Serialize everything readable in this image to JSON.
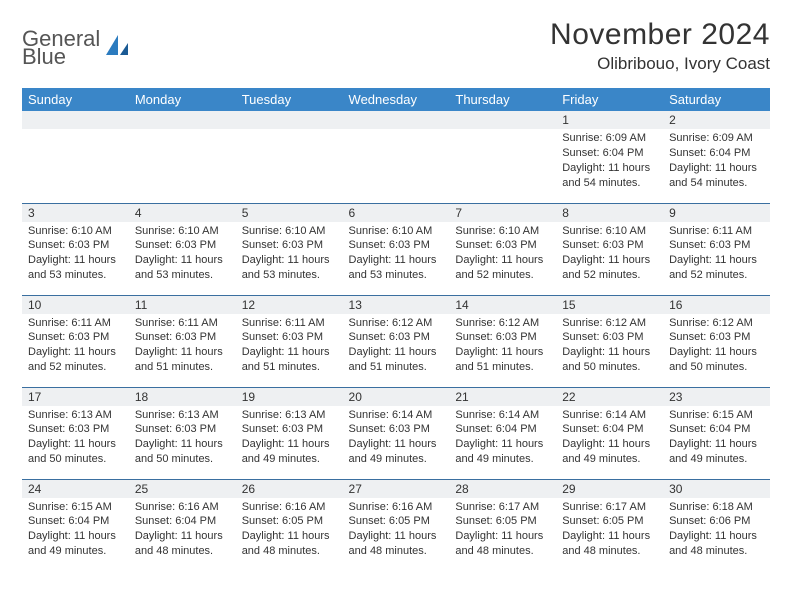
{
  "logo": {
    "line1": "General",
    "line2": "Blue"
  },
  "title": "November 2024",
  "location": "Olibribouo, Ivory Coast",
  "colors": {
    "header_bg": "#3a86c8",
    "header_text": "#ffffff",
    "daynum_bg": "#eef0f2",
    "border": "#3a6fa0",
    "logo_gray": "#555555",
    "logo_blue": "#2b7bbf",
    "text": "#333333"
  },
  "weekdays": [
    "Sunday",
    "Monday",
    "Tuesday",
    "Wednesday",
    "Thursday",
    "Friday",
    "Saturday"
  ],
  "weeks": [
    [
      {
        "num": "",
        "lines": []
      },
      {
        "num": "",
        "lines": []
      },
      {
        "num": "",
        "lines": []
      },
      {
        "num": "",
        "lines": []
      },
      {
        "num": "",
        "lines": []
      },
      {
        "num": "1",
        "lines": [
          "Sunrise: 6:09 AM",
          "Sunset: 6:04 PM",
          "Daylight: 11 hours and 54 minutes."
        ]
      },
      {
        "num": "2",
        "lines": [
          "Sunrise: 6:09 AM",
          "Sunset: 6:04 PM",
          "Daylight: 11 hours and 54 minutes."
        ]
      }
    ],
    [
      {
        "num": "3",
        "lines": [
          "Sunrise: 6:10 AM",
          "Sunset: 6:03 PM",
          "Daylight: 11 hours and 53 minutes."
        ]
      },
      {
        "num": "4",
        "lines": [
          "Sunrise: 6:10 AM",
          "Sunset: 6:03 PM",
          "Daylight: 11 hours and 53 minutes."
        ]
      },
      {
        "num": "5",
        "lines": [
          "Sunrise: 6:10 AM",
          "Sunset: 6:03 PM",
          "Daylight: 11 hours and 53 minutes."
        ]
      },
      {
        "num": "6",
        "lines": [
          "Sunrise: 6:10 AM",
          "Sunset: 6:03 PM",
          "Daylight: 11 hours and 53 minutes."
        ]
      },
      {
        "num": "7",
        "lines": [
          "Sunrise: 6:10 AM",
          "Sunset: 6:03 PM",
          "Daylight: 11 hours and 52 minutes."
        ]
      },
      {
        "num": "8",
        "lines": [
          "Sunrise: 6:10 AM",
          "Sunset: 6:03 PM",
          "Daylight: 11 hours and 52 minutes."
        ]
      },
      {
        "num": "9",
        "lines": [
          "Sunrise: 6:11 AM",
          "Sunset: 6:03 PM",
          "Daylight: 11 hours and 52 minutes."
        ]
      }
    ],
    [
      {
        "num": "10",
        "lines": [
          "Sunrise: 6:11 AM",
          "Sunset: 6:03 PM",
          "Daylight: 11 hours and 52 minutes."
        ]
      },
      {
        "num": "11",
        "lines": [
          "Sunrise: 6:11 AM",
          "Sunset: 6:03 PM",
          "Daylight: 11 hours and 51 minutes."
        ]
      },
      {
        "num": "12",
        "lines": [
          "Sunrise: 6:11 AM",
          "Sunset: 6:03 PM",
          "Daylight: 11 hours and 51 minutes."
        ]
      },
      {
        "num": "13",
        "lines": [
          "Sunrise: 6:12 AM",
          "Sunset: 6:03 PM",
          "Daylight: 11 hours and 51 minutes."
        ]
      },
      {
        "num": "14",
        "lines": [
          "Sunrise: 6:12 AM",
          "Sunset: 6:03 PM",
          "Daylight: 11 hours and 51 minutes."
        ]
      },
      {
        "num": "15",
        "lines": [
          "Sunrise: 6:12 AM",
          "Sunset: 6:03 PM",
          "Daylight: 11 hours and 50 minutes."
        ]
      },
      {
        "num": "16",
        "lines": [
          "Sunrise: 6:12 AM",
          "Sunset: 6:03 PM",
          "Daylight: 11 hours and 50 minutes."
        ]
      }
    ],
    [
      {
        "num": "17",
        "lines": [
          "Sunrise: 6:13 AM",
          "Sunset: 6:03 PM",
          "Daylight: 11 hours and 50 minutes."
        ]
      },
      {
        "num": "18",
        "lines": [
          "Sunrise: 6:13 AM",
          "Sunset: 6:03 PM",
          "Daylight: 11 hours and 50 minutes."
        ]
      },
      {
        "num": "19",
        "lines": [
          "Sunrise: 6:13 AM",
          "Sunset: 6:03 PM",
          "Daylight: 11 hours and 49 minutes."
        ]
      },
      {
        "num": "20",
        "lines": [
          "Sunrise: 6:14 AM",
          "Sunset: 6:03 PM",
          "Daylight: 11 hours and 49 minutes."
        ]
      },
      {
        "num": "21",
        "lines": [
          "Sunrise: 6:14 AM",
          "Sunset: 6:04 PM",
          "Daylight: 11 hours and 49 minutes."
        ]
      },
      {
        "num": "22",
        "lines": [
          "Sunrise: 6:14 AM",
          "Sunset: 6:04 PM",
          "Daylight: 11 hours and 49 minutes."
        ]
      },
      {
        "num": "23",
        "lines": [
          "Sunrise: 6:15 AM",
          "Sunset: 6:04 PM",
          "Daylight: 11 hours and 49 minutes."
        ]
      }
    ],
    [
      {
        "num": "24",
        "lines": [
          "Sunrise: 6:15 AM",
          "Sunset: 6:04 PM",
          "Daylight: 11 hours and 49 minutes."
        ]
      },
      {
        "num": "25",
        "lines": [
          "Sunrise: 6:16 AM",
          "Sunset: 6:04 PM",
          "Daylight: 11 hours and 48 minutes."
        ]
      },
      {
        "num": "26",
        "lines": [
          "Sunrise: 6:16 AM",
          "Sunset: 6:05 PM",
          "Daylight: 11 hours and 48 minutes."
        ]
      },
      {
        "num": "27",
        "lines": [
          "Sunrise: 6:16 AM",
          "Sunset: 6:05 PM",
          "Daylight: 11 hours and 48 minutes."
        ]
      },
      {
        "num": "28",
        "lines": [
          "Sunrise: 6:17 AM",
          "Sunset: 6:05 PM",
          "Daylight: 11 hours and 48 minutes."
        ]
      },
      {
        "num": "29",
        "lines": [
          "Sunrise: 6:17 AM",
          "Sunset: 6:05 PM",
          "Daylight: 11 hours and 48 minutes."
        ]
      },
      {
        "num": "30",
        "lines": [
          "Sunrise: 6:18 AM",
          "Sunset: 6:06 PM",
          "Daylight: 11 hours and 48 minutes."
        ]
      }
    ]
  ]
}
